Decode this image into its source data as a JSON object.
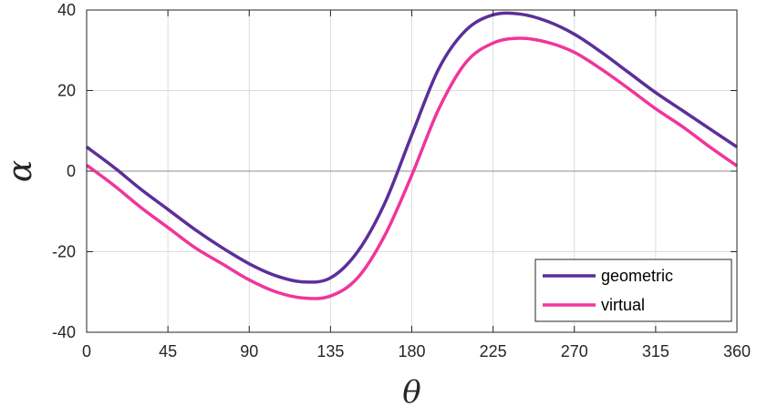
{
  "chart_data": {
    "type": "line",
    "title": "",
    "xlabel": "θ",
    "ylabel": "α",
    "xlim": [
      0,
      360
    ],
    "ylim": [
      -40,
      40
    ],
    "xticks": [
      0,
      45,
      90,
      135,
      180,
      225,
      270,
      315,
      360
    ],
    "yticks": [
      -40,
      -20,
      0,
      20,
      40
    ],
    "xtick_labels": [
      "0",
      "45",
      "90",
      "135",
      "180",
      "225",
      "270",
      "315",
      "360"
    ],
    "ytick_labels": [
      "-40",
      "-20",
      "0",
      "20",
      "40"
    ],
    "grid": true,
    "zero_line": true,
    "legend_position": "bottom-right",
    "series": [
      {
        "name": "geometric",
        "color": "#5b2f9a",
        "x": [
          0,
          15,
          30,
          45,
          60,
          75,
          90,
          105,
          120,
          135,
          150,
          165,
          180,
          195,
          210,
          225,
          240,
          255,
          270,
          285,
          300,
          315,
          330,
          345,
          360
        ],
        "y": [
          6,
          1,
          -4.5,
          -9.5,
          -14.5,
          -19,
          -23,
          -26,
          -27.5,
          -26.5,
          -20,
          -8,
          9,
          25.5,
          35,
          38.8,
          39,
          37.2,
          34,
          29.5,
          24.5,
          19.5,
          15,
          10.5,
          6
        ]
      },
      {
        "name": "virtual",
        "color": "#f0359b",
        "x": [
          0,
          15,
          30,
          45,
          60,
          75,
          90,
          105,
          120,
          135,
          150,
          165,
          180,
          195,
          210,
          225,
          240,
          255,
          270,
          285,
          300,
          315,
          330,
          345,
          360
        ],
        "y": [
          1.5,
          -3.5,
          -9,
          -14,
          -19,
          -23,
          -27,
          -30,
          -31.5,
          -31,
          -26.5,
          -16,
          -1,
          15.5,
          27,
          31.8,
          33,
          32,
          29.5,
          25.3,
          20.5,
          15.5,
          11,
          6,
          1.3
        ]
      }
    ]
  }
}
